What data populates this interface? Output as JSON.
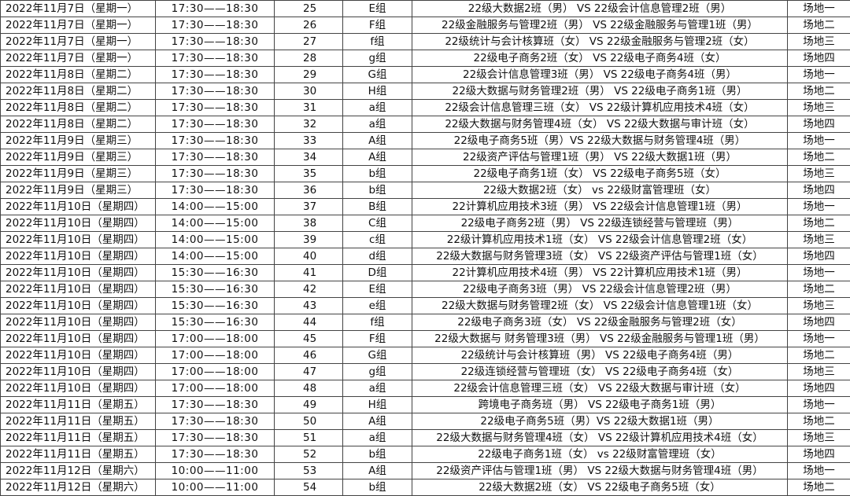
{
  "rows": [
    [
      "2022年11月7日（星期一）",
      "17:30——18:30",
      "25",
      "E组",
      "22级大数据2班（男） VS 22级会计信息管理2班（男）",
      "场地一"
    ],
    [
      "2022年11月7日（星期一）",
      "17:30——18:30",
      "26",
      "F组",
      "22级金融服务与管理2班（男） VS 22级金融服务与管理1班（男）",
      "场地二"
    ],
    [
      "2022年11月7日（星期一）",
      "17:30——18:30",
      "27",
      "f组",
      "22级统计与会计核算班（女） VS 22级金融服务与管理2班（女）",
      "场地三"
    ],
    [
      "2022年11月7日（星期一）",
      "17:30——18:30",
      "28",
      "g组",
      "22级电子商务2班（女） VS 22级电子商务4班（女）",
      "场地四"
    ],
    [
      "2022年11月8日（星期二）",
      "17:30——18:30",
      "29",
      "G组",
      "22级会计信息管理3班（男） VS 22级电子商务4班（男）",
      "场地一"
    ],
    [
      "2022年11月8日（星期二）",
      "17:30——18:30",
      "30",
      "H组",
      "22级大数据与财务管理2班（男） VS 22级电子商务1班（男）",
      "场地二"
    ],
    [
      "2022年11月8日（星期二）",
      "17:30——18:30",
      "31",
      "a组",
      "22级会计信息管理三班（女） VS 22级计算机应用技术4班（女）",
      "场地三"
    ],
    [
      "2022年11月8日（星期二）",
      "17:30——18:30",
      "32",
      "a组",
      "22级大数据与财务管理4班（女） VS 22级大数据与审计班（女）",
      "场地四"
    ],
    [
      "2022年11月9日（星期三）",
      "17:30——18:30",
      "33",
      "A组",
      "22级电子商务5班（男）VS 22级大数据与财务管理4班（男）",
      "场地一"
    ],
    [
      "2022年11月9日（星期三）",
      "17:30——18:30",
      "34",
      "A组",
      "22级资产评估与管理1班（男） VS 22级大数据1班（男）",
      "场地二"
    ],
    [
      "2022年11月9日（星期三）",
      "17:30——18:30",
      "35",
      "b组",
      "22级电子商务1班（女） VS 22级电子商务5班（女）",
      "场地三"
    ],
    [
      "2022年11月9日（星期三）",
      "17:30——18:30",
      "36",
      "b组",
      "22级大数据2班（女） vs 22级财富管理班（女）",
      "场地四"
    ],
    [
      "2022年11月10日（星期四）",
      "14:00——15:00",
      "37",
      "B组",
      "22计算机应用技术3班（男） VS 22级会计信息管理1班（男）",
      "场地一"
    ],
    [
      "2022年11月10日（星期四）",
      "14:00——15:00",
      "38",
      "C组",
      "22级电子商务2班（男） VS 22级连锁经营与管理班（男）",
      "场地二"
    ],
    [
      "2022年11月10日（星期四）",
      "14:00——15:00",
      "39",
      "c组",
      "22级计算机应用技术1班（女） VS 22级会计信息管理2班（女）",
      "场地三"
    ],
    [
      "2022年11月10日（星期四）",
      "14:00——15:00",
      "40",
      "d组",
      "22级大数据与财务管理3班（女） VS 22级资产评估与管理1班（女）",
      "场地四"
    ],
    [
      "2022年11月10日（星期四）",
      "15:30——16:30",
      "41",
      "D组",
      "22计算机应用技术4班（男） VS 22计算机应用技术1班（男）",
      "场地一"
    ],
    [
      "2022年11月10日（星期四）",
      "15:30——16:30",
      "42",
      "E组",
      "22级电子商务3班（男） VS 22级会计信息管理2班（男）",
      "场地二"
    ],
    [
      "2022年11月10日（星期四）",
      "15:30——16:30",
      "43",
      "e组",
      "22级大数据与财务管理2班（女） VS 22级会计信息管理1班（女）",
      "场地三"
    ],
    [
      "2022年11月10日（星期四）",
      "15:30——16:30",
      "44",
      "f组",
      "22级电子商务3班（女） VS 22级金融服务与管理2班（女）",
      "场地四"
    ],
    [
      "2022年11月10日（星期四）",
      "17:00——18:00",
      "45",
      "F组",
      "22级大数据与 财务管理3班（男） VS 22级金融服务与管理1班（男）",
      "场地一"
    ],
    [
      "2022年11月10日（星期四）",
      "17:00——18:00",
      "46",
      "G组",
      "22级统计与会计核算班（男） VS 22级电子商务4班（男）",
      "场地二"
    ],
    [
      "2022年11月10日（星期四）",
      "17:00——18:00",
      "47",
      "g组",
      "22级连锁经营与管理班（女） VS 22级电子商务4班（女）",
      "场地三"
    ],
    [
      "2022年11月10日（星期四）",
      "17:00——18:00",
      "48",
      "a组",
      "22级会计信息管理三班（女） VS 22级大数据与审计班（女）",
      "场地四"
    ],
    [
      "2022年11月11日（星期五）",
      "17:30——18:30",
      "49",
      "H组",
      "跨境电子商务班（男） VS 22级电子商务1班（男）",
      "场地一"
    ],
    [
      "2022年11月11日（星期五）",
      "17:30——18:30",
      "50",
      "A组",
      "22级电子商务5班（男）VS 22级大数据1班（男）",
      "场地二"
    ],
    [
      "2022年11月11日（星期五）",
      "17:30——18:30",
      "51",
      "a组",
      "22级大数据与财务管理4班（女） VS 22级计算机应用技术4班（女）",
      "场地三"
    ],
    [
      "2022年11月11日（星期五）",
      "17:30——18:30",
      "52",
      "b组",
      "22级电子商务1班（女） vs 22级财富管理班（女）",
      "场地四"
    ],
    [
      "2022年11月12日（星期六）",
      "10:00——11:00",
      "53",
      "A组",
      "22级资产评估与管理1班（男） VS 22级大数据与财务管理4班（男）",
      "场地一"
    ],
    [
      "2022年11月12日（星期六）",
      "10:00——11:00",
      "54",
      "b组",
      "22级大数据2班（女） VS 22级电子商务5班（女）",
      "场地二"
    ]
  ]
}
